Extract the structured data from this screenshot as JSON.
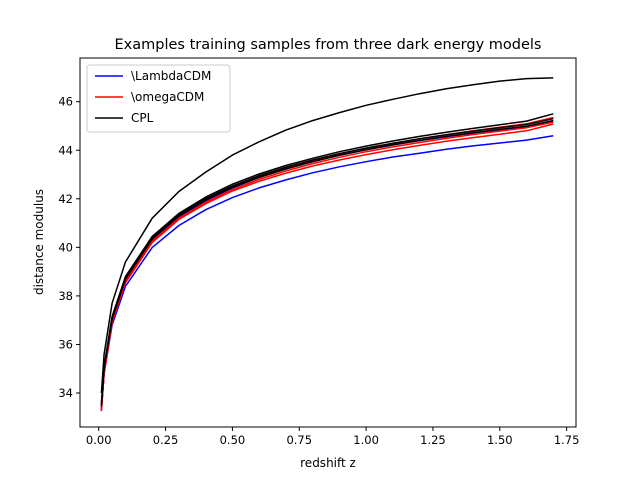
{
  "chart_data": {
    "type": "line",
    "title": "Examples training samples from three dark energy models",
    "xlabel": "redshift z",
    "ylabel": "distance modulus",
    "xlim": [
      -0.07,
      1.785
    ],
    "ylim": [
      32.6,
      47.8
    ],
    "xticks": [
      0.0,
      0.25,
      0.5,
      0.75,
      1.0,
      1.25,
      1.5,
      1.75
    ],
    "xtick_labels": [
      "0.00",
      "0.25",
      "0.50",
      "0.75",
      "1.00",
      "1.25",
      "1.50",
      "1.75"
    ],
    "yticks": [
      34,
      36,
      38,
      40,
      42,
      44,
      46
    ],
    "ytick_labels": [
      "34",
      "36",
      "38",
      "40",
      "42",
      "44",
      "46"
    ],
    "grid": false,
    "legend_position": "upper-left",
    "legend": [
      {
        "label": "\\LambdaCDM",
        "color": "#0000ff"
      },
      {
        "label": "\\omegaCDM",
        "color": "#ff0000"
      },
      {
        "label": "CPL",
        "color": "#000000"
      }
    ],
    "x": [
      0.01,
      0.02,
      0.05,
      0.1,
      0.2,
      0.3,
      0.4,
      0.5,
      0.6,
      0.7,
      0.8,
      0.9,
      1.0,
      1.1,
      1.2,
      1.3,
      1.4,
      1.5,
      1.6,
      1.7
    ],
    "series": [
      {
        "model": "\\LambdaCDM",
        "color": "#0000ff",
        "values": [
          33.3,
          34.8,
          36.8,
          38.4,
          40.0,
          40.9,
          41.55,
          42.05,
          42.45,
          42.78,
          43.07,
          43.32,
          43.53,
          43.72,
          43.88,
          44.04,
          44.18,
          44.3,
          44.42,
          44.6
        ]
      },
      {
        "model": "\\LambdaCDM",
        "color": "#0000ff",
        "values": [
          33.35,
          34.9,
          37.0,
          38.65,
          40.3,
          41.25,
          41.92,
          42.45,
          42.88,
          43.23,
          43.53,
          43.79,
          44.02,
          44.22,
          44.4,
          44.56,
          44.71,
          44.85,
          44.98,
          45.22
        ]
      },
      {
        "model": "\\omegaCDM",
        "color": "#ff0000",
        "values": [
          33.25,
          34.8,
          36.9,
          38.55,
          40.2,
          41.15,
          41.8,
          42.32,
          42.72,
          43.06,
          43.35,
          43.6,
          43.82,
          44.02,
          44.2,
          44.37,
          44.52,
          44.66,
          44.8,
          45.08
        ]
      },
      {
        "model": "\\omegaCDM",
        "color": "#ff0000",
        "values": [
          33.3,
          34.85,
          36.95,
          38.6,
          40.25,
          41.2,
          41.86,
          42.38,
          42.8,
          43.15,
          43.45,
          43.71,
          43.94,
          44.14,
          44.32,
          44.49,
          44.65,
          44.79,
          44.93,
          45.16
        ]
      },
      {
        "model": "\\omegaCDM",
        "color": "#ff0000",
        "values": [
          33.4,
          34.95,
          37.05,
          38.7,
          40.35,
          41.3,
          41.97,
          42.5,
          42.93,
          43.28,
          43.58,
          43.85,
          44.08,
          44.28,
          44.47,
          44.64,
          44.8,
          44.95,
          45.09,
          45.35
        ]
      },
      {
        "model": "CPL",
        "color": "#000000",
        "values": [
          33.6,
          35.1,
          37.15,
          38.8,
          40.45,
          41.4,
          42.07,
          42.6,
          43.02,
          43.37,
          43.67,
          43.94,
          44.17,
          44.38,
          44.57,
          44.74,
          44.9,
          45.05,
          45.2,
          45.5
        ]
      },
      {
        "model": "CPL",
        "color": "#000000",
        "values": [
          33.5,
          35.05,
          37.1,
          38.75,
          40.4,
          41.35,
          42.01,
          42.53,
          42.95,
          43.3,
          43.6,
          43.86,
          44.09,
          44.29,
          44.47,
          44.64,
          44.79,
          44.93,
          45.06,
          45.3
        ]
      },
      {
        "model": "CPL",
        "color": "#000000",
        "values": [
          33.45,
          35.0,
          37.05,
          38.7,
          40.35,
          41.3,
          41.95,
          42.47,
          42.88,
          43.23,
          43.53,
          43.79,
          44.02,
          44.22,
          44.4,
          44.57,
          44.72,
          44.86,
          44.99,
          45.22
        ]
      },
      {
        "model": "CPL",
        "color": "#000000",
        "values": [
          34.0,
          35.6,
          37.7,
          39.4,
          41.2,
          42.3,
          43.1,
          43.8,
          44.35,
          44.83,
          45.22,
          45.55,
          45.85,
          46.1,
          46.33,
          46.53,
          46.7,
          46.85,
          46.95,
          46.98
        ]
      }
    ]
  }
}
